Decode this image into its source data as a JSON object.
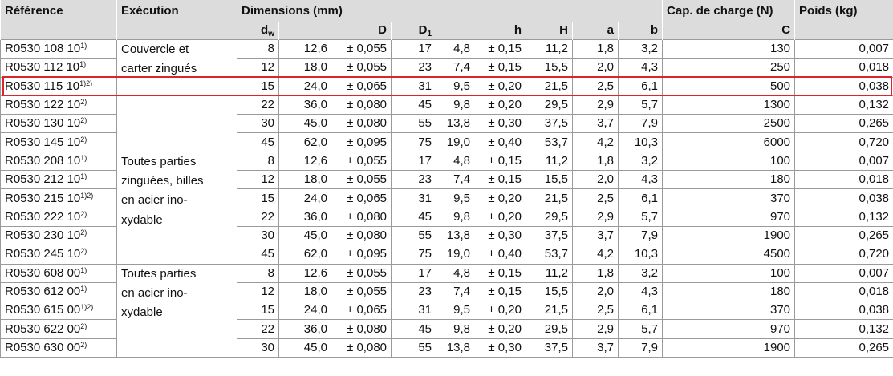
{
  "header": {
    "reference": "Référence",
    "execution": "Exécution",
    "dimensions": "Dimensions (mm)",
    "capacity": "Cap. de charge (N)",
    "weight": "Poids (kg)",
    "sub": [
      {
        "text": "d",
        "sub": "w"
      },
      {
        "text": "D"
      },
      {
        "text": "D",
        "sub": "1"
      },
      {
        "text": "h"
      },
      {
        "text": "H"
      },
      {
        "text": "a"
      },
      {
        "text": "b"
      },
      {
        "text": "C"
      }
    ]
  },
  "groups": [
    {
      "execution": [
        "Couvercle et",
        "carter zingués"
      ],
      "rows": [
        {
          "ref": "R0530 108 10",
          "note": "1)",
          "dw": "8",
          "D": "12,6",
          "D_tol": "± 0,055",
          "D1": "17",
          "h": "4,8",
          "h_tol": "± 0,15",
          "H": "11,2",
          "a": "1,8",
          "b": "3,2",
          "C": "130",
          "weight": "0,007"
        },
        {
          "ref": "R0530 112 10",
          "note": "1)",
          "dw": "12",
          "D": "18,0",
          "D_tol": "± 0,055",
          "D1": "23",
          "h": "7,4",
          "h_tol": "± 0,15",
          "H": "15,5",
          "a": "2,0",
          "b": "4,3",
          "C": "250",
          "weight": "0,018"
        },
        {
          "ref": "R0530 115 10",
          "note": "1)2)",
          "dw": "15",
          "D": "24,0",
          "D_tol": "± 0,065",
          "D1": "31",
          "h": "9,5",
          "h_tol": "± 0,20",
          "H": "21,5",
          "a": "2,5",
          "b": "6,1",
          "C": "500",
          "weight": "0,038",
          "highlight": true
        },
        {
          "ref": "R0530 122 10",
          "note": "2)",
          "dw": "22",
          "D": "36,0",
          "D_tol": "± 0,080",
          "D1": "45",
          "h": "9,8",
          "h_tol": "± 0,20",
          "H": "29,5",
          "a": "2,9",
          "b": "5,7",
          "C": "1300",
          "weight": "0,132"
        },
        {
          "ref": "R0530 130 10",
          "note": "2)",
          "dw": "30",
          "D": "45,0",
          "D_tol": "± 0,080",
          "D1": "55",
          "h": "13,8",
          "h_tol": "± 0,30",
          "H": "37,5",
          "a": "3,7",
          "b": "7,9",
          "C": "2500",
          "weight": "0,265"
        },
        {
          "ref": "R0530 145 10",
          "note": "2)",
          "dw": "45",
          "D": "62,0",
          "D_tol": "± 0,095",
          "D1": "75",
          "h": "19,0",
          "h_tol": "± 0,40",
          "H": "53,7",
          "a": "4,2",
          "b": "10,3",
          "C": "6000",
          "weight": "0,720"
        }
      ]
    },
    {
      "execution": [
        "Toutes parties",
        "zinguées, billes",
        "en acier ino-",
        "xydable"
      ],
      "rows": [
        {
          "ref": "R0530 208 10",
          "note": "1)",
          "dw": "8",
          "D": "12,6",
          "D_tol": "± 0,055",
          "D1": "17",
          "h": "4,8",
          "h_tol": "± 0,15",
          "H": "11,2",
          "a": "1,8",
          "b": "3,2",
          "C": "100",
          "weight": "0,007"
        },
        {
          "ref": "R0530 212 10",
          "note": "1)",
          "dw": "12",
          "D": "18,0",
          "D_tol": "± 0,055",
          "D1": "23",
          "h": "7,4",
          "h_tol": "± 0,15",
          "H": "15,5",
          "a": "2,0",
          "b": "4,3",
          "C": "180",
          "weight": "0,018"
        },
        {
          "ref": "R0530 215 10",
          "note": "1)2)",
          "dw": "15",
          "D": "24,0",
          "D_tol": "± 0,065",
          "D1": "31",
          "h": "9,5",
          "h_tol": "± 0,20",
          "H": "21,5",
          "a": "2,5",
          "b": "6,1",
          "C": "370",
          "weight": "0,038"
        },
        {
          "ref": "R0530 222 10",
          "note": "2)",
          "dw": "22",
          "D": "36,0",
          "D_tol": "± 0,080",
          "D1": "45",
          "h": "9,8",
          "h_tol": "± 0,20",
          "H": "29,5",
          "a": "2,9",
          "b": "5,7",
          "C": "970",
          "weight": "0,132"
        },
        {
          "ref": "R0530 230 10",
          "note": "2)",
          "dw": "30",
          "D": "45,0",
          "D_tol": "± 0,080",
          "D1": "55",
          "h": "13,8",
          "h_tol": "± 0,30",
          "H": "37,5",
          "a": "3,7",
          "b": "7,9",
          "C": "1900",
          "weight": "0,265"
        },
        {
          "ref": "R0530 245 10",
          "note": "2)",
          "dw": "45",
          "D": "62,0",
          "D_tol": "± 0,095",
          "D1": "75",
          "h": "19,0",
          "h_tol": "± 0,40",
          "H": "53,7",
          "a": "4,2",
          "b": "10,3",
          "C": "4500",
          "weight": "0,720"
        }
      ]
    },
    {
      "execution": [
        "Toutes parties",
        "en acier ino-",
        "xydable"
      ],
      "rows": [
        {
          "ref": "R0530 608 00",
          "note": "1)",
          "dw": "8",
          "D": "12,6",
          "D_tol": "± 0,055",
          "D1": "17",
          "h": "4,8",
          "h_tol": "± 0,15",
          "H": "11,2",
          "a": "1,8",
          "b": "3,2",
          "C": "100",
          "weight": "0,007"
        },
        {
          "ref": "R0530 612 00",
          "note": "1)",
          "dw": "12",
          "D": "18,0",
          "D_tol": "± 0,055",
          "D1": "23",
          "h": "7,4",
          "h_tol": "± 0,15",
          "H": "15,5",
          "a": "2,0",
          "b": "4,3",
          "C": "180",
          "weight": "0,018"
        },
        {
          "ref": "R0530 615 00",
          "note": "1)2)",
          "dw": "15",
          "D": "24,0",
          "D_tol": "± 0,065",
          "D1": "31",
          "h": "9,5",
          "h_tol": "± 0,20",
          "H": "21,5",
          "a": "2,5",
          "b": "6,1",
          "C": "370",
          "weight": "0,038"
        },
        {
          "ref": "R0530 622 00",
          "note": "2)",
          "dw": "22",
          "D": "36,0",
          "D_tol": "± 0,080",
          "D1": "45",
          "h": "9,8",
          "h_tol": "± 0,20",
          "H": "29,5",
          "a": "2,9",
          "b": "5,7",
          "C": "970",
          "weight": "0,132"
        },
        {
          "ref": "R0530 630 00",
          "note": "2)",
          "dw": "30",
          "D": "45,0",
          "D_tol": "± 0,080",
          "D1": "55",
          "h": "13,8",
          "h_tol": "± 0,30",
          "H": "37,5",
          "a": "3,7",
          "b": "7,9",
          "C": "1900",
          "weight": "0,265"
        }
      ]
    }
  ]
}
